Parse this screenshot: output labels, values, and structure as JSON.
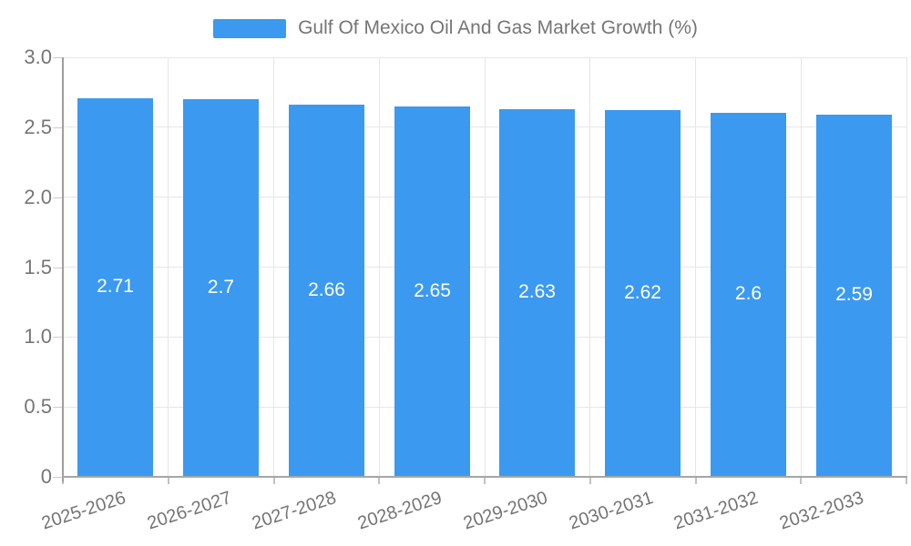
{
  "legend": {
    "label": "Gulf Of Mexico Oil And Gas Market Growth (%)"
  },
  "chart_data": {
    "type": "bar",
    "title": "Gulf Of Mexico Oil And Gas Market Growth (%)",
    "categories": [
      "2025-2026",
      "2026-2027",
      "2027-2028",
      "2028-2029",
      "2029-2030",
      "2030-2031",
      "2031-2032",
      "2032-2033"
    ],
    "values": [
      2.71,
      2.7,
      2.66,
      2.65,
      2.63,
      2.62,
      2.6,
      2.59
    ],
    "value_labels": [
      "2.71",
      "2.7",
      "2.66",
      "2.65",
      "2.63",
      "2.62",
      "2.6",
      "2.59"
    ],
    "xlabel": "",
    "ylabel": "",
    "ylim": [
      0,
      3
    ],
    "ytick_step": 0.5,
    "ytick_labels": [
      "0",
      "0.5",
      "1.0",
      "1.5",
      "2.0",
      "2.5",
      "3.0"
    ],
    "grid": true,
    "legend_position": "top-center",
    "colors": {
      "bar": "#3B99F0",
      "value_label": "#FFFFFF",
      "axis_text": "#757575",
      "gridline": "#E6E6E6",
      "axis_line": "#9E9E9E",
      "background": "#FFFFFF"
    }
  }
}
